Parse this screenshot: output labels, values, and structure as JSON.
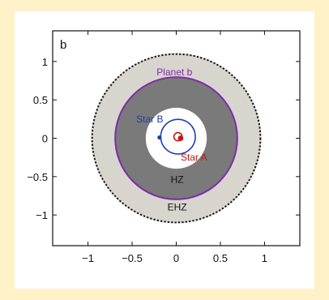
{
  "chart_data": {
    "type": "scatter",
    "panel_label": "b",
    "xlim": [
      -1.4,
      1.4
    ],
    "ylim": [
      -1.4,
      1.4
    ],
    "x_ticks": [
      -1,
      -0.5,
      0,
      0.5,
      1
    ],
    "y_ticks": [
      1,
      0.5,
      0,
      -0.5,
      -1
    ],
    "x_tick_labels": [
      "−1",
      "−0.5",
      "0",
      "0.5",
      "1"
    ],
    "y_tick_labels": [
      "1",
      "0.5",
      "0",
      "−0.5",
      "−1"
    ],
    "regions": [
      {
        "name": "EHZ",
        "inner_radius": 0.37,
        "outer_radius": 1.03,
        "color": "#d8d5cf"
      },
      {
        "name": "HZ",
        "inner_radius": 0.37,
        "outer_radius": 0.74,
        "color": "#7a7a7a"
      }
    ],
    "orbits": [
      {
        "name": "Planet b",
        "radius": 0.74,
        "center": [
          0,
          0
        ],
        "color": "#7d2ca8"
      },
      {
        "name": "Star B",
        "radius": 0.21,
        "center": [
          0.02,
          0.02
        ],
        "color": "#1a3fb8"
      },
      {
        "name": "Star A",
        "radius": 0.05,
        "center": [
          0.02,
          0.02
        ],
        "color": "#c21818"
      }
    ],
    "points": [
      {
        "name": "Star B",
        "x": -0.19,
        "y": 0.01,
        "color": "#1a3fb8"
      },
      {
        "name": "Star A",
        "x": 0.05,
        "y": 0.0,
        "color": "#c21818"
      }
    ],
    "labels": [
      {
        "text": "Planet b",
        "x": -0.02,
        "y": 0.86,
        "color": "#7d2ca8"
      },
      {
        "text": "Star B",
        "x": -0.3,
        "y": 0.25,
        "color": "#1a3fb8"
      },
      {
        "text": "Star A",
        "x": 0.2,
        "y": -0.25,
        "color": "#c21818"
      },
      {
        "text": "HZ",
        "x": 0.01,
        "y": -0.54,
        "color": "#111111"
      },
      {
        "text": "EHZ",
        "x": 0.01,
        "y": -0.9,
        "color": "#111111"
      }
    ],
    "ehz_edge_style": "dashed",
    "grid": false
  }
}
